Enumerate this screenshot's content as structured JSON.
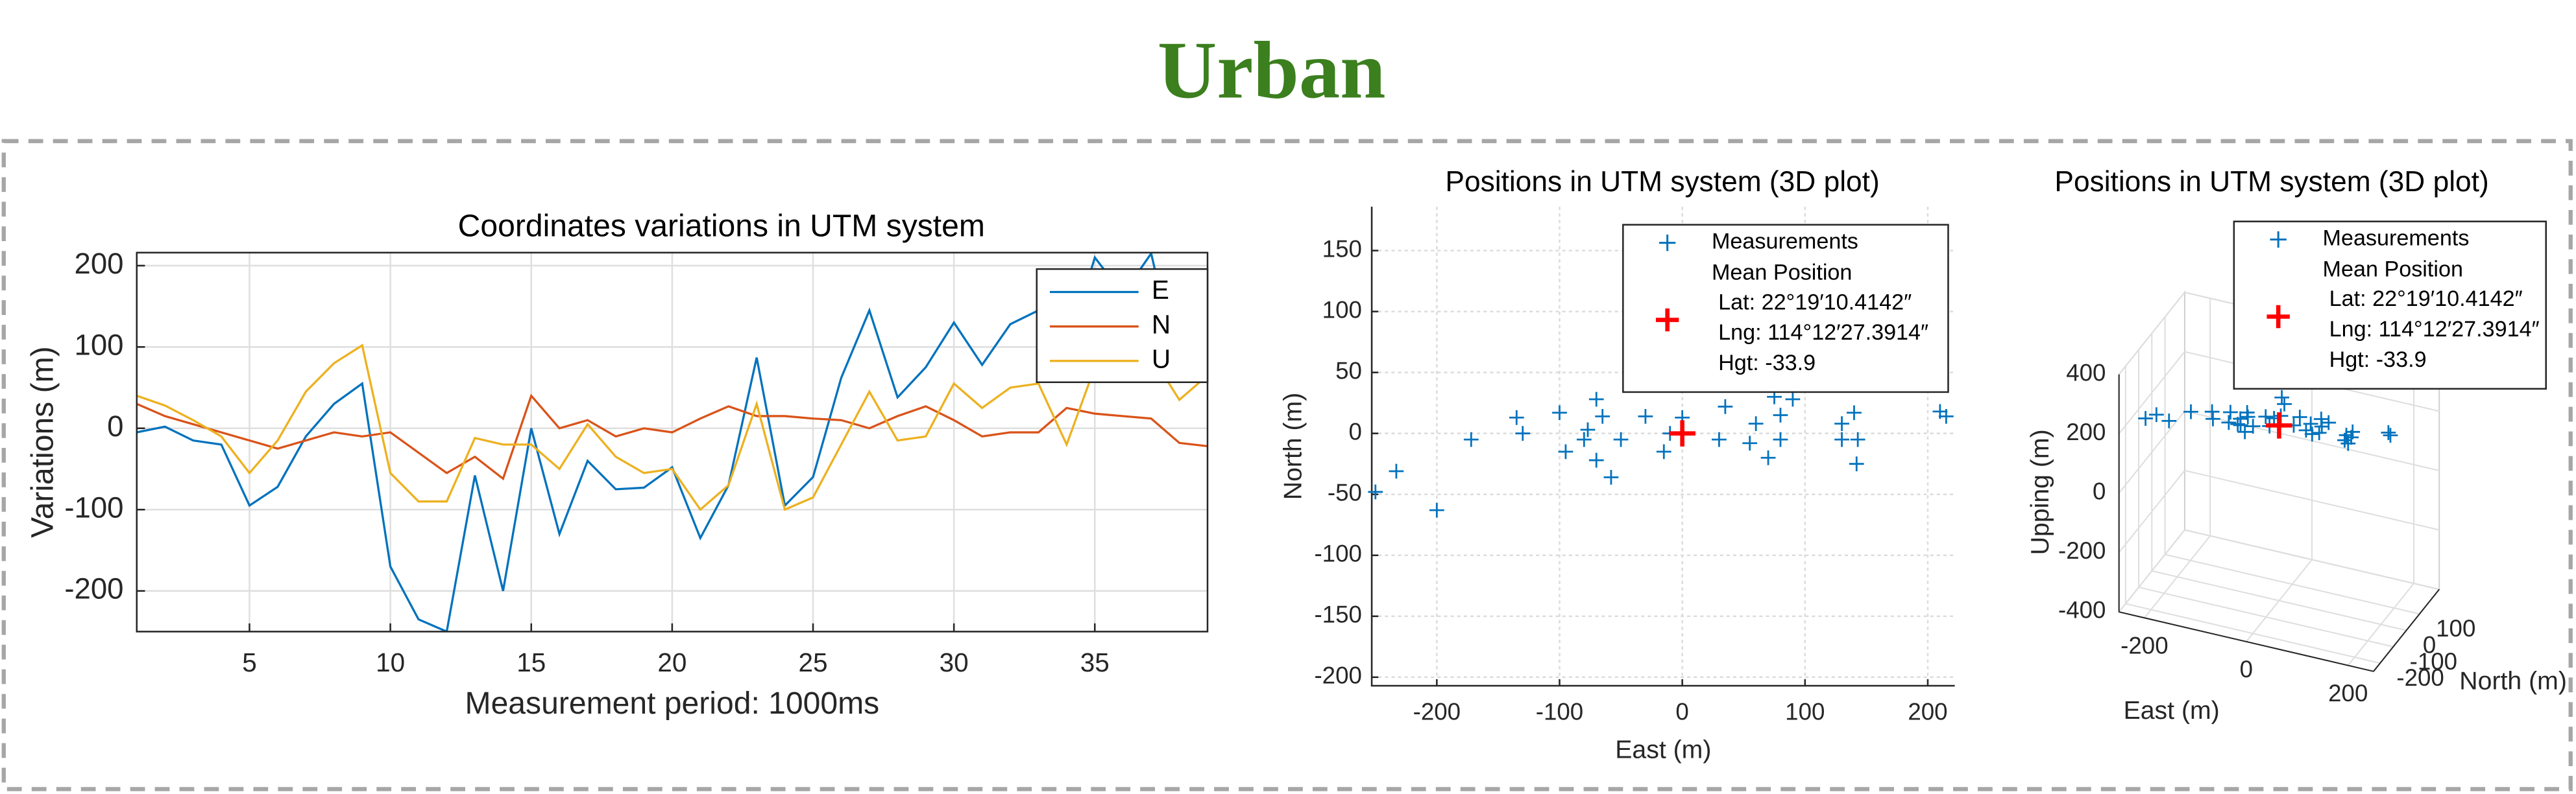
{
  "page_title": "Urban",
  "chart_data": [
    {
      "type": "line",
      "title": "Coordinates variations in UTM system",
      "x_label": "Measurement period: 1000ms",
      "y_label": "Variations (m)",
      "x": [
        1,
        2,
        3,
        4,
        5,
        6,
        7,
        8,
        9,
        10,
        11,
        12,
        13,
        14,
        15,
        16,
        17,
        18,
        19,
        20,
        21,
        22,
        23,
        24,
        25,
        26,
        27,
        28,
        29,
        30,
        31,
        32,
        33,
        34,
        35,
        36,
        37,
        38,
        39
      ],
      "series": [
        {
          "name": "E",
          "color": "#0072bd",
          "values": [
            -5,
            2,
            -15,
            -20,
            -95,
            -72,
            -10,
            30,
            55,
            -170,
            -235,
            -250,
            -58,
            -200,
            0,
            -130,
            -40,
            -75,
            -73,
            -48,
            -135,
            -70,
            87,
            -95,
            -60,
            62,
            145,
            38,
            75,
            130,
            78,
            128,
            145,
            95,
            210,
            165,
            215,
            65,
            140
          ]
        },
        {
          "name": "N",
          "color": "#d95319",
          "values": [
            30,
            15,
            5,
            -5,
            -15,
            -25,
            -15,
            -5,
            -10,
            -5,
            -30,
            -55,
            -35,
            -62,
            40,
            0,
            10,
            -10,
            0,
            -5,
            12,
            27,
            15,
            15,
            12,
            10,
            0,
            15,
            27,
            10,
            -10,
            -5,
            -5,
            25,
            18,
            15,
            12,
            -18,
            -22
          ]
        },
        {
          "name": "U",
          "color": "#edb120",
          "values": [
            40,
            28,
            10,
            -10,
            -55,
            -15,
            45,
            80,
            102,
            -55,
            -90,
            -90,
            -12,
            -20,
            -20,
            -50,
            5,
            -35,
            -55,
            -50,
            -100,
            -70,
            30,
            -100,
            -85,
            -20,
            45,
            -15,
            -10,
            55,
            25,
            50,
            55,
            -20,
            75,
            100,
            90,
            35,
            65
          ]
        }
      ],
      "xlim": [
        1,
        39
      ],
      "ylim": [
        -250,
        216
      ],
      "xticks": [
        5,
        10,
        15,
        20,
        25,
        30,
        35
      ],
      "yticks": [
        -200,
        -100,
        0,
        100,
        200
      ],
      "grid": true,
      "legend": "upper-right"
    },
    {
      "type": "scatter",
      "title": "Positions in UTM system (3D plot)",
      "x_label": "East (m)",
      "y_label": "North (m)",
      "series": [
        {
          "name": "Measurements",
          "color": "#0072bd",
          "x": [
            -250,
            -233,
            -200,
            -172,
            -135,
            -130,
            -100,
            -95,
            -80,
            -77,
            -70,
            -70,
            -65,
            -58,
            -50,
            -30,
            -15,
            -10,
            -5,
            0,
            0,
            35,
            30,
            55,
            60,
            70,
            75,
            80,
            80,
            90,
            130,
            130,
            140,
            142,
            143,
            210,
            215
          ],
          "y": [
            -48,
            -31,
            -63,
            -5,
            13,
            0,
            17,
            -15,
            -5,
            3,
            28,
            -22,
            14,
            -36,
            -5,
            14,
            -15,
            0,
            40,
            40,
            13,
            22,
            -5,
            -8,
            8,
            -20,
            30,
            15,
            -5,
            28,
            8,
            -5,
            17,
            -25,
            -5,
            18,
            14
          ]
        }
      ],
      "mean": {
        "name": "Mean Position",
        "color": "#ff0000",
        "x": 0,
        "y": 0,
        "lines": [
          "Lat: 22°19′10.4142″",
          "Lng: 114°12′27.3914″",
          "Hgt: -33.9"
        ]
      },
      "xlim": [
        -253,
        222
      ],
      "ylim": [
        -207,
        186
      ],
      "xticks": [
        -200,
        -100,
        0,
        100,
        200
      ],
      "yticks": [
        -200,
        -150,
        -100,
        -50,
        0,
        50,
        100,
        150
      ],
      "grid": true,
      "legend": "upper-right"
    },
    {
      "type": "scatter3d",
      "title": "Positions in UTM system (3D plot)",
      "x_label": "East (m)",
      "y_label": "North (m)",
      "z_label": "Upping (m)",
      "series": [
        {
          "name": "Measurements",
          "color": "#0072bd",
          "x": [
            -250,
            -233,
            -200,
            -172,
            -135,
            -130,
            -100,
            -95,
            -80,
            -77,
            -70,
            -70,
            -65,
            -58,
            -50,
            -30,
            -15,
            -10,
            -5,
            0,
            0,
            35,
            30,
            55,
            60,
            70,
            75,
            80,
            80,
            90,
            130,
            130,
            140,
            142,
            143,
            210,
            215
          ],
          "y": [
            -48,
            -31,
            -63,
            -5,
            13,
            0,
            17,
            -15,
            -5,
            3,
            28,
            -22,
            14,
            -36,
            -5,
            14,
            -15,
            0,
            40,
            40,
            13,
            22,
            -5,
            -8,
            8,
            -20,
            30,
            15,
            -5,
            28,
            8,
            -5,
            17,
            -25,
            -5,
            18,
            14
          ],
          "z": [
            140,
            150,
            160,
            170,
            175,
            160,
            185,
            170,
            165,
            180,
            190,
            175,
            185,
            165,
            170,
            200,
            190,
            210,
            260,
            240,
            215,
            220,
            205,
            200,
            215,
            200,
            225,
            210,
            200,
            220,
            205,
            195,
            215,
            200,
            210,
            240,
            235
          ]
        }
      ],
      "mean": {
        "name": "Mean Position",
        "color": "#ff0000",
        "x": 0,
        "y": 0,
        "z": 190,
        "lines": [
          "Lat: 22°19′10.4142″",
          "Lng: 114°12′27.3914″",
          "Hgt: -33.9"
        ]
      },
      "xlim": [
        -250,
        250
      ],
      "ylim": [
        -250,
        250
      ],
      "zlim": [
        -400,
        400
      ],
      "xticks": [
        -200,
        0,
        200
      ],
      "yticks": [
        -200,
        -100,
        0,
        100
      ],
      "zticks": [
        -400,
        -200,
        0,
        200,
        400
      ],
      "grid": true,
      "legend": "upper-right"
    }
  ]
}
